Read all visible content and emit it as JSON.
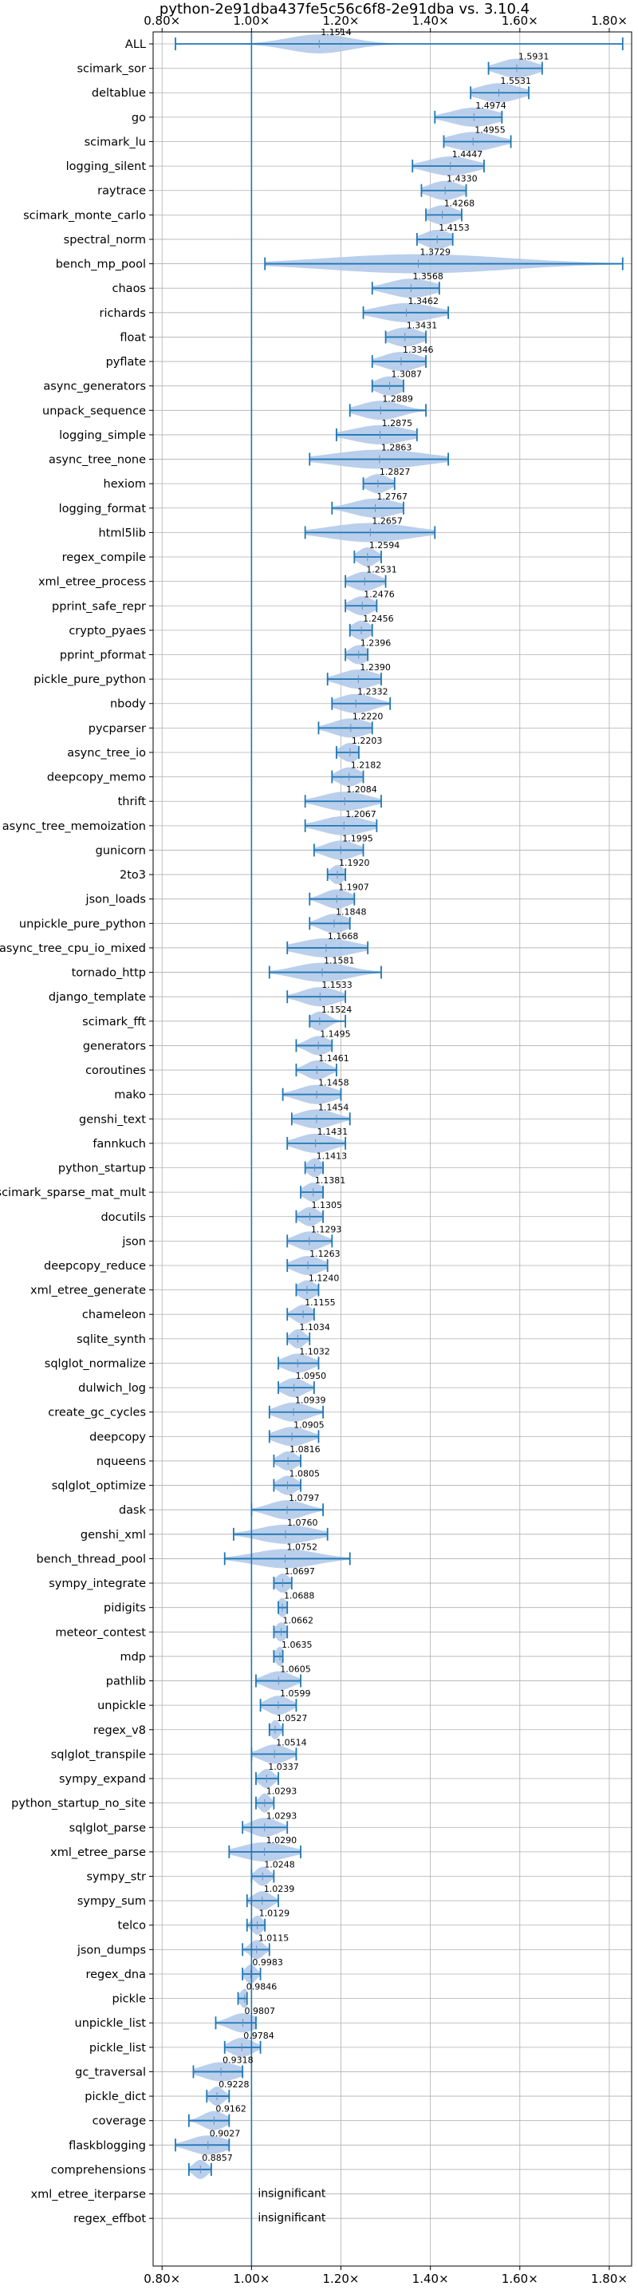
{
  "chart_data": {
    "type": "violin",
    "title": "python-2e91dba437fe5c56c6f8-2e91dba vs. 3.10.4",
    "xlabel": "",
    "ylabel": "",
    "xlim": [
      0.78,
      1.85
    ],
    "xticks": [
      0.8,
      1.0,
      1.2,
      1.4,
      1.6,
      1.8
    ],
    "xtick_labels": [
      "0.80×",
      "1.00×",
      "1.20×",
      "1.40×",
      "1.60×",
      "1.80×"
    ],
    "reference_line": 1.0,
    "grid": true,
    "insignificant_label": "insignificant",
    "benchmarks": [
      {
        "name": "ALL",
        "value": 1.1514,
        "label": "1.1514",
        "min": 0.83,
        "max": 1.83,
        "spread": 0.07
      },
      {
        "name": "scimark_sor",
        "value": 1.5931,
        "label": "1.5931",
        "min": 1.53,
        "max": 1.65,
        "spread": 0.04
      },
      {
        "name": "deltablue",
        "value": 1.5531,
        "label": "1.5531",
        "min": 1.49,
        "max": 1.62,
        "spread": 0.045
      },
      {
        "name": "go",
        "value": 1.4974,
        "label": "1.4974",
        "min": 1.41,
        "max": 1.56,
        "spread": 0.05
      },
      {
        "name": "scimark_lu",
        "value": 1.4955,
        "label": "1.4955",
        "min": 1.43,
        "max": 1.58,
        "spread": 0.05
      },
      {
        "name": "logging_silent",
        "value": 1.4447,
        "label": "1.4447",
        "min": 1.36,
        "max": 1.52,
        "spread": 0.05
      },
      {
        "name": "raytrace",
        "value": 1.433,
        "label": "1.4330",
        "min": 1.38,
        "max": 1.48,
        "spread": 0.035
      },
      {
        "name": "scimark_monte_carlo",
        "value": 1.4268,
        "label": "1.4268",
        "min": 1.39,
        "max": 1.47,
        "spread": 0.03
      },
      {
        "name": "spectral_norm",
        "value": 1.4153,
        "label": "1.4153",
        "min": 1.37,
        "max": 1.45,
        "spread": 0.03
      },
      {
        "name": "bench_mp_pool",
        "value": 1.3729,
        "label": "1.3729",
        "min": 1.03,
        "max": 1.83,
        "spread": 0.2
      },
      {
        "name": "chaos",
        "value": 1.3568,
        "label": "1.3568",
        "min": 1.27,
        "max": 1.42,
        "spread": 0.05
      },
      {
        "name": "richards",
        "value": 1.3462,
        "label": "1.3462",
        "min": 1.25,
        "max": 1.44,
        "spread": 0.06
      },
      {
        "name": "float",
        "value": 1.3431,
        "label": "1.3431",
        "min": 1.3,
        "max": 1.39,
        "spread": 0.035
      },
      {
        "name": "pyflate",
        "value": 1.3346,
        "label": "1.3346",
        "min": 1.27,
        "max": 1.39,
        "spread": 0.04
      },
      {
        "name": "async_generators",
        "value": 1.3087,
        "label": "1.3087",
        "min": 1.27,
        "max": 1.34,
        "spread": 0.03
      },
      {
        "name": "unpack_sequence",
        "value": 1.2889,
        "label": "1.2889",
        "min": 1.22,
        "max": 1.39,
        "spread": 0.045
      },
      {
        "name": "logging_simple",
        "value": 1.2875,
        "label": "1.2875",
        "min": 1.19,
        "max": 1.37,
        "spread": 0.06
      },
      {
        "name": "async_tree_none",
        "value": 1.2863,
        "label": "1.2863",
        "min": 1.13,
        "max": 1.44,
        "spread": 0.1
      },
      {
        "name": "hexiom",
        "value": 1.2827,
        "label": "1.2827",
        "min": 1.25,
        "max": 1.32,
        "spread": 0.025
      },
      {
        "name": "logging_format",
        "value": 1.2767,
        "label": "1.2767",
        "min": 1.18,
        "max": 1.34,
        "spread": 0.05
      },
      {
        "name": "html5lib",
        "value": 1.2657,
        "label": "1.2657",
        "min": 1.12,
        "max": 1.41,
        "spread": 0.09
      },
      {
        "name": "regex_compile",
        "value": 1.2594,
        "label": "1.2594",
        "min": 1.23,
        "max": 1.29,
        "spread": 0.02
      },
      {
        "name": "xml_etree_process",
        "value": 1.2531,
        "label": "1.2531",
        "min": 1.21,
        "max": 1.3,
        "spread": 0.03
      },
      {
        "name": "pprint_safe_repr",
        "value": 1.2476,
        "label": "1.2476",
        "min": 1.21,
        "max": 1.28,
        "spread": 0.025
      },
      {
        "name": "crypto_pyaes",
        "value": 1.2456,
        "label": "1.2456",
        "min": 1.22,
        "max": 1.27,
        "spread": 0.02
      },
      {
        "name": "pprint_pformat",
        "value": 1.2396,
        "label": "1.2396",
        "min": 1.21,
        "max": 1.26,
        "spread": 0.02
      },
      {
        "name": "pickle_pure_python",
        "value": 1.239,
        "label": "1.2390",
        "min": 1.17,
        "max": 1.29,
        "spread": 0.04
      },
      {
        "name": "nbody",
        "value": 1.2332,
        "label": "1.2332",
        "min": 1.18,
        "max": 1.31,
        "spread": 0.04
      },
      {
        "name": "pycparser",
        "value": 1.222,
        "label": "1.2220",
        "min": 1.15,
        "max": 1.27,
        "spread": 0.04
      },
      {
        "name": "async_tree_io",
        "value": 1.2203,
        "label": "1.2203",
        "min": 1.19,
        "max": 1.24,
        "spread": 0.02
      },
      {
        "name": "deepcopy_memo",
        "value": 1.2182,
        "label": "1.2182",
        "min": 1.18,
        "max": 1.25,
        "spread": 0.025
      },
      {
        "name": "thrift",
        "value": 1.2084,
        "label": "1.2084",
        "min": 1.12,
        "max": 1.29,
        "spread": 0.05
      },
      {
        "name": "async_tree_memoization",
        "value": 1.2067,
        "label": "1.2067",
        "min": 1.12,
        "max": 1.28,
        "spread": 0.05
      },
      {
        "name": "gunicorn",
        "value": 1.1995,
        "label": "1.1995",
        "min": 1.14,
        "max": 1.25,
        "spread": 0.035
      },
      {
        "name": "2to3",
        "value": 1.192,
        "label": "1.1920",
        "min": 1.17,
        "max": 1.21,
        "spread": 0.015
      },
      {
        "name": "json_loads",
        "value": 1.1907,
        "label": "1.1907",
        "min": 1.13,
        "max": 1.23,
        "spread": 0.03
      },
      {
        "name": "unpickle_pure_python",
        "value": 1.1848,
        "label": "1.1848",
        "min": 1.13,
        "max": 1.22,
        "spread": 0.03
      },
      {
        "name": "async_tree_cpu_io_mixed",
        "value": 1.1668,
        "label": "1.1668",
        "min": 1.08,
        "max": 1.26,
        "spread": 0.06
      },
      {
        "name": "tornado_http",
        "value": 1.1581,
        "label": "1.1581",
        "min": 1.04,
        "max": 1.29,
        "spread": 0.06
      },
      {
        "name": "django_template",
        "value": 1.1533,
        "label": "1.1533",
        "min": 1.08,
        "max": 1.21,
        "spread": 0.04
      },
      {
        "name": "scimark_fft",
        "value": 1.1524,
        "label": "1.1524",
        "min": 1.13,
        "max": 1.21,
        "spread": 0.02
      },
      {
        "name": "generators",
        "value": 1.1495,
        "label": "1.1495",
        "min": 1.1,
        "max": 1.18,
        "spread": 0.025
      },
      {
        "name": "coroutines",
        "value": 1.1461,
        "label": "1.1461",
        "min": 1.1,
        "max": 1.19,
        "spread": 0.025
      },
      {
        "name": "mako",
        "value": 1.1458,
        "label": "1.1458",
        "min": 1.07,
        "max": 1.2,
        "spread": 0.04
      },
      {
        "name": "genshi_text",
        "value": 1.1454,
        "label": "1.1454",
        "min": 1.09,
        "max": 1.22,
        "spread": 0.04
      },
      {
        "name": "fannkuch",
        "value": 1.1431,
        "label": "1.1431",
        "min": 1.08,
        "max": 1.21,
        "spread": 0.04
      },
      {
        "name": "python_startup",
        "value": 1.1413,
        "label": "1.1413",
        "min": 1.12,
        "max": 1.16,
        "spread": 0.015
      },
      {
        "name": "scimark_sparse_mat_mult",
        "value": 1.1381,
        "label": "1.1381",
        "min": 1.11,
        "max": 1.16,
        "spread": 0.02
      },
      {
        "name": "docutils",
        "value": 1.1305,
        "label": "1.1305",
        "min": 1.1,
        "max": 1.16,
        "spread": 0.02
      },
      {
        "name": "json",
        "value": 1.1293,
        "label": "1.1293",
        "min": 1.08,
        "max": 1.18,
        "spread": 0.03
      },
      {
        "name": "deepcopy_reduce",
        "value": 1.1263,
        "label": "1.1263",
        "min": 1.08,
        "max": 1.17,
        "spread": 0.03
      },
      {
        "name": "xml_etree_generate",
        "value": 1.124,
        "label": "1.1240",
        "min": 1.1,
        "max": 1.15,
        "spread": 0.02
      },
      {
        "name": "chameleon",
        "value": 1.1155,
        "label": "1.1155",
        "min": 1.08,
        "max": 1.14,
        "spread": 0.02
      },
      {
        "name": "sqlite_synth",
        "value": 1.1034,
        "label": "1.1034",
        "min": 1.08,
        "max": 1.13,
        "spread": 0.015
      },
      {
        "name": "sqlglot_normalize",
        "value": 1.1032,
        "label": "1.1032",
        "min": 1.06,
        "max": 1.15,
        "spread": 0.03
      },
      {
        "name": "dulwich_log",
        "value": 1.095,
        "label": "1.0950",
        "min": 1.06,
        "max": 1.14,
        "spread": 0.025
      },
      {
        "name": "create_gc_cycles",
        "value": 1.0939,
        "label": "1.0939",
        "min": 1.04,
        "max": 1.16,
        "spread": 0.035
      },
      {
        "name": "deepcopy",
        "value": 1.0905,
        "label": "1.0905",
        "min": 1.04,
        "max": 1.15,
        "spread": 0.035
      },
      {
        "name": "nqueens",
        "value": 1.0816,
        "label": "1.0816",
        "min": 1.05,
        "max": 1.11,
        "spread": 0.02
      },
      {
        "name": "sqlglot_optimize",
        "value": 1.0805,
        "label": "1.0805",
        "min": 1.05,
        "max": 1.11,
        "spread": 0.02
      },
      {
        "name": "dask",
        "value": 1.0797,
        "label": "1.0797",
        "min": 1.0,
        "max": 1.16,
        "spread": 0.04
      },
      {
        "name": "genshi_xml",
        "value": 1.076,
        "label": "1.0760",
        "min": 0.96,
        "max": 1.17,
        "spread": 0.06
      },
      {
        "name": "bench_thread_pool",
        "value": 1.0752,
        "label": "1.0752",
        "min": 0.94,
        "max": 1.22,
        "spread": 0.07
      },
      {
        "name": "sympy_integrate",
        "value": 1.0697,
        "label": "1.0697",
        "min": 1.05,
        "max": 1.09,
        "spread": 0.015
      },
      {
        "name": "pidigits",
        "value": 1.0688,
        "label": "1.0688",
        "min": 1.06,
        "max": 1.08,
        "spread": 0.01
      },
      {
        "name": "meteor_contest",
        "value": 1.0662,
        "label": "1.0662",
        "min": 1.05,
        "max": 1.08,
        "spread": 0.012
      },
      {
        "name": "mdp",
        "value": 1.0635,
        "label": "1.0635",
        "min": 1.05,
        "max": 1.07,
        "spread": 0.01
      },
      {
        "name": "pathlib",
        "value": 1.0605,
        "label": "1.0605",
        "min": 1.01,
        "max": 1.11,
        "spread": 0.03
      },
      {
        "name": "unpickle",
        "value": 1.0599,
        "label": "1.0599",
        "min": 1.02,
        "max": 1.1,
        "spread": 0.025
      },
      {
        "name": "regex_v8",
        "value": 1.0527,
        "label": "1.0527",
        "min": 1.04,
        "max": 1.07,
        "spread": 0.01
      },
      {
        "name": "sqlglot_transpile",
        "value": 1.0514,
        "label": "1.0514",
        "min": 1.0,
        "max": 1.1,
        "spread": 0.03
      },
      {
        "name": "sympy_expand",
        "value": 1.0337,
        "label": "1.0337",
        "min": 1.01,
        "max": 1.06,
        "spread": 0.015
      },
      {
        "name": "python_startup_no_site",
        "value": 1.0293,
        "label": "1.0293",
        "min": 1.01,
        "max": 1.05,
        "spread": 0.012
      },
      {
        "name": "sqlglot_parse",
        "value": 1.0293,
        "label": "1.0293",
        "min": 0.98,
        "max": 1.08,
        "spread": 0.03
      },
      {
        "name": "xml_etree_parse",
        "value": 1.029,
        "label": "1.0290",
        "min": 0.95,
        "max": 1.11,
        "spread": 0.05
      },
      {
        "name": "sympy_str",
        "value": 1.0248,
        "label": "1.0248",
        "min": 1.0,
        "max": 1.05,
        "spread": 0.015
      },
      {
        "name": "sympy_sum",
        "value": 1.0239,
        "label": "1.0239",
        "min": 0.99,
        "max": 1.06,
        "spread": 0.02
      },
      {
        "name": "telco",
        "value": 1.0129,
        "label": "1.0129",
        "min": 0.99,
        "max": 1.03,
        "spread": 0.012
      },
      {
        "name": "json_dumps",
        "value": 1.0115,
        "label": "1.0115",
        "min": 0.98,
        "max": 1.04,
        "spread": 0.015
      },
      {
        "name": "regex_dna",
        "value": 0.9983,
        "label": "0.9983",
        "min": 0.98,
        "max": 1.02,
        "spread": 0.012
      },
      {
        "name": "pickle",
        "value": 0.9846,
        "label": "0.9846",
        "min": 0.97,
        "max": 0.99,
        "spread": 0.01
      },
      {
        "name": "unpickle_list",
        "value": 0.9807,
        "label": "0.9807",
        "min": 0.92,
        "max": 1.01,
        "spread": 0.03
      },
      {
        "name": "pickle_list",
        "value": 0.9784,
        "label": "0.9784",
        "min": 0.94,
        "max": 1.02,
        "spread": 0.025
      },
      {
        "name": "gc_traversal",
        "value": 0.9318,
        "label": "0.9318",
        "min": 0.87,
        "max": 0.98,
        "spread": 0.04
      },
      {
        "name": "pickle_dict",
        "value": 0.9228,
        "label": "0.9228",
        "min": 0.9,
        "max": 0.95,
        "spread": 0.015
      },
      {
        "name": "coverage",
        "value": 0.9162,
        "label": "0.9162",
        "min": 0.86,
        "max": 0.95,
        "spread": 0.025
      },
      {
        "name": "flaskblogging",
        "value": 0.9027,
        "label": "0.9027",
        "min": 0.83,
        "max": 0.95,
        "spread": 0.04
      },
      {
        "name": "comprehensions",
        "value": 0.8857,
        "label": "0.8857",
        "min": 0.86,
        "max": 0.91,
        "spread": 0.015
      },
      {
        "name": "xml_etree_iterparse",
        "value": null,
        "label": "insignificant"
      },
      {
        "name": "regex_effbot",
        "value": null,
        "label": "insignificant"
      }
    ]
  },
  "colors": {
    "violin": "#aec7e8",
    "line": "#1f77b4",
    "grid": "#b0b0b0",
    "axis": "#000000"
  }
}
